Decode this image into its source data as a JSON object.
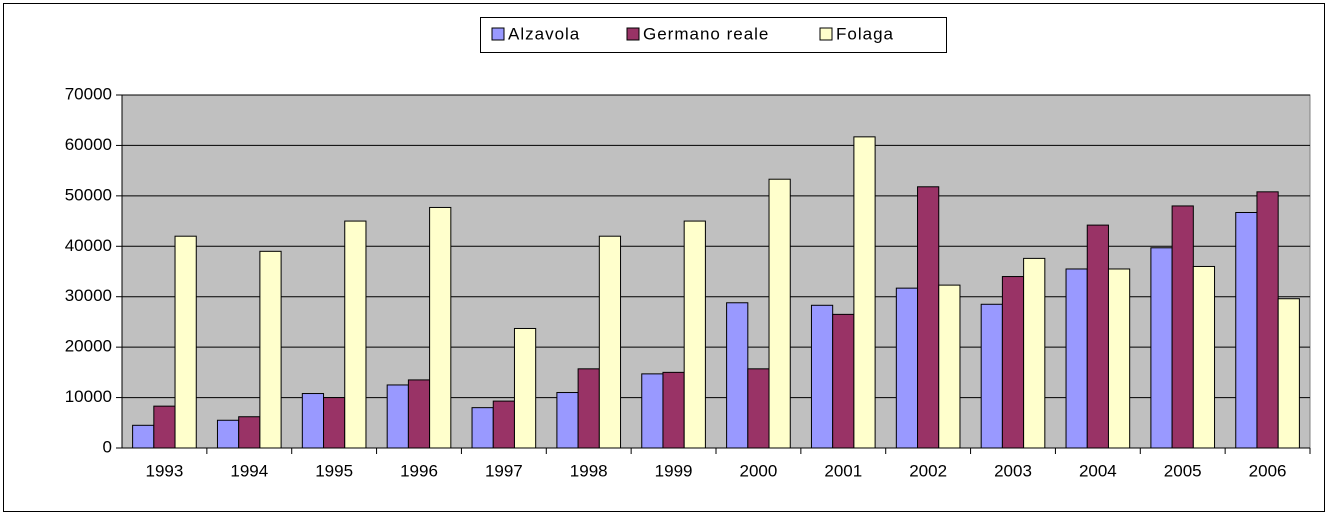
{
  "chart_data": {
    "type": "bar",
    "categories": [
      "1993",
      "1994",
      "1995",
      "1996",
      "1997",
      "1998",
      "1999",
      "2000",
      "2001",
      "2002",
      "2003",
      "2004",
      "2005",
      "2006"
    ],
    "series": [
      {
        "name": "Alzavola",
        "color": "#9999ff",
        "values": [
          4500,
          5500,
          10800,
          12500,
          8000,
          11000,
          14700,
          28800,
          28300,
          31700,
          28500,
          35500,
          39700,
          46700
        ]
      },
      {
        "name": "Germano reale",
        "color": "#993366",
        "values": [
          8300,
          6200,
          10000,
          13500,
          9300,
          15700,
          15000,
          15700,
          26500,
          51800,
          34000,
          44200,
          48000,
          50800
        ]
      },
      {
        "name": "Folaga",
        "color": "#ffffcc",
        "values": [
          42000,
          39000,
          45000,
          47700,
          23700,
          42000,
          45000,
          53300,
          61700,
          32300,
          37600,
          35500,
          36000,
          29600
        ]
      }
    ],
    "ylim": [
      0,
      70000
    ],
    "yticks": [
      0,
      10000,
      20000,
      30000,
      40000,
      50000,
      60000,
      70000
    ],
    "grid": true,
    "plot_background": "#c0c0c0",
    "legend": "top"
  }
}
